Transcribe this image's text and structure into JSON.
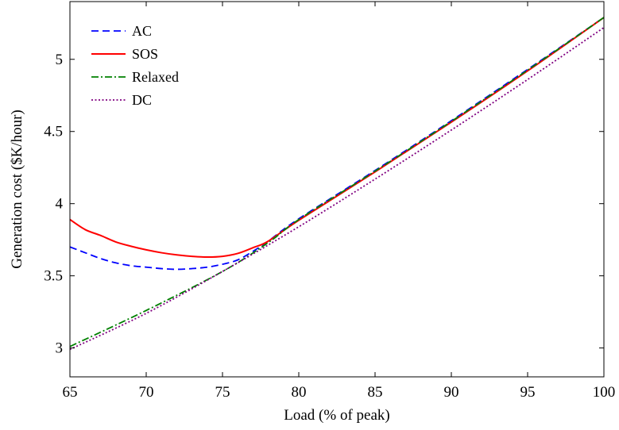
{
  "chart_data": {
    "type": "line",
    "title": "",
    "xlabel": "Load (% of peak)",
    "ylabel": "Generation cost ($K/hour)",
    "xlim": [
      65,
      100
    ],
    "ylim": [
      2.8,
      5.4
    ],
    "xticks": [
      65,
      70,
      75,
      80,
      85,
      90,
      95,
      100
    ],
    "yticks": [
      3,
      3.5,
      4,
      4.5,
      5
    ],
    "xtick_labels": [
      "65",
      "70",
      "75",
      "80",
      "85",
      "90",
      "95",
      "100"
    ],
    "ytick_labels": [
      "3",
      "3.5",
      "4",
      "4.5",
      "5"
    ],
    "grid": false,
    "legend_position": "top-left",
    "series": [
      {
        "name": "AC",
        "color": "#0000ff",
        "style": "dashed",
        "x": [
          65,
          66,
          67,
          68,
          69,
          70,
          71,
          72,
          73,
          74,
          75,
          76,
          77,
          78,
          80,
          85,
          90,
          95,
          100
        ],
        "y": [
          3.7,
          3.66,
          3.62,
          3.59,
          3.57,
          3.56,
          3.55,
          3.545,
          3.55,
          3.56,
          3.58,
          3.61,
          3.67,
          3.74,
          3.895,
          4.23,
          4.575,
          4.93,
          5.29
        ]
      },
      {
        "name": "SOS",
        "color": "#ff0000",
        "style": "solid",
        "x": [
          65,
          66,
          67,
          68,
          69,
          70,
          71,
          72,
          73,
          74,
          75,
          76,
          77,
          78,
          80,
          85,
          90,
          95,
          100
        ],
        "y": [
          3.89,
          3.82,
          3.78,
          3.735,
          3.705,
          3.68,
          3.66,
          3.645,
          3.635,
          3.63,
          3.635,
          3.655,
          3.695,
          3.74,
          3.885,
          4.22,
          4.565,
          4.92,
          5.29
        ]
      },
      {
        "name": "Relaxed",
        "color": "#008000",
        "style": "dashdot",
        "x": [
          65,
          70,
          75,
          78,
          80,
          85,
          90,
          95,
          100
        ],
        "y": [
          3.01,
          3.26,
          3.53,
          3.73,
          3.89,
          4.225,
          4.57,
          4.925,
          5.29
        ]
      },
      {
        "name": "DC",
        "color": "#800080",
        "style": "dotted",
        "x": [
          65,
          70,
          75,
          80,
          85,
          90,
          95,
          100
        ],
        "y": [
          2.99,
          3.24,
          3.53,
          3.84,
          4.17,
          4.51,
          4.86,
          5.22
        ]
      }
    ]
  }
}
